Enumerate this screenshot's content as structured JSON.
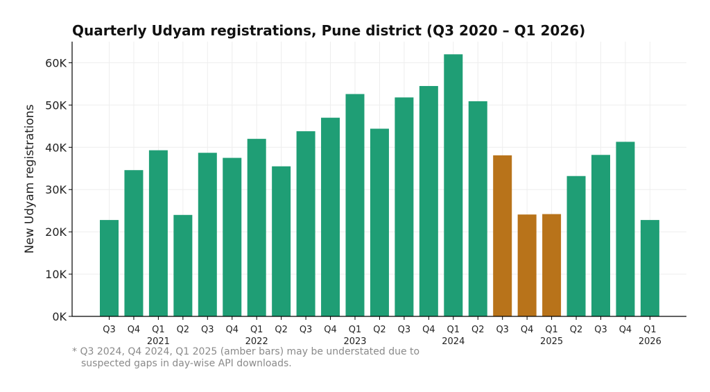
{
  "chart_data": {
    "type": "bar",
    "title": "Quarterly Udyam registrations, Pune district (Q3 2020 – Q1 2026)",
    "xlabel": "",
    "ylabel": "New Udyam registrations",
    "ylim": [
      0,
      65000
    ],
    "yticks": [
      0,
      10000,
      20000,
      30000,
      40000,
      50000,
      60000
    ],
    "ytick_labels": [
      "0K",
      "10K",
      "20K",
      "30K",
      "40K",
      "50K",
      "60K"
    ],
    "grid": true,
    "categories": [
      "Q3",
      "Q4",
      "Q1",
      "Q2",
      "Q3",
      "Q4",
      "Q1",
      "Q2",
      "Q3",
      "Q4",
      "Q1",
      "Q2",
      "Q3",
      "Q4",
      "Q1",
      "Q2",
      "Q3",
      "Q4",
      "Q1",
      "Q2",
      "Q3",
      "Q4",
      "Q1"
    ],
    "year_labels": [
      "",
      "",
      "2021",
      "",
      "",
      "",
      "2022",
      "",
      "",
      "",
      "2023",
      "",
      "",
      "",
      "2024",
      "",
      "",
      "",
      "2025",
      "",
      "",
      "",
      "2026"
    ],
    "values": [
      22800,
      34600,
      39300,
      24000,
      38700,
      37500,
      42000,
      35500,
      43800,
      47000,
      52600,
      44400,
      51800,
      54500,
      62000,
      50900,
      38100,
      24100,
      24200,
      33200,
      38200,
      41300,
      22800
    ],
    "flagged": [
      false,
      false,
      false,
      false,
      false,
      false,
      false,
      false,
      false,
      false,
      false,
      false,
      false,
      false,
      false,
      false,
      true,
      true,
      true,
      false,
      false,
      false,
      false
    ],
    "colors": {
      "normal": "#1f9e75",
      "flagged": "#b8731a",
      "axis": "#000000",
      "grid": "#eeeeee"
    },
    "footnote": "* Q3 2024, Q4 2024, Q1 2025 (amber bars) may be understated due to suspected gaps in day-wise API downloads.",
    "footnote_lines": [
      "* Q3 2024, Q4 2024, Q1 2025 (amber bars) may be understated due to",
      "suspected gaps in day-wise API downloads."
    ]
  }
}
